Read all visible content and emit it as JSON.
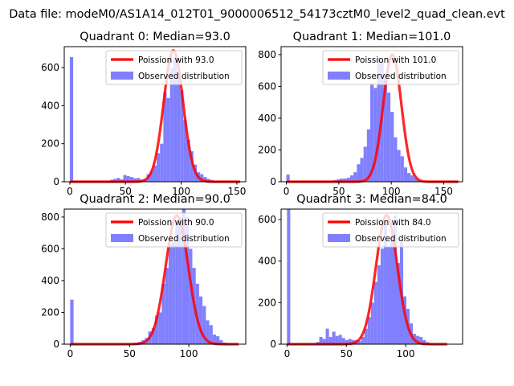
{
  "figure": {
    "suptitle": "Data file: modeM0/AS1A14_012T01_9000006512_54173cztM0_level2_quad_clean.evt"
  },
  "colors": {
    "fit": "#ff0000",
    "hist": "#8080ff",
    "axis": "#000000"
  },
  "chart_data": [
    {
      "type": "bar",
      "title": "Quadrant 0: Median=93.0",
      "median": 93.0,
      "xlim": [
        -5,
        158
      ],
      "ylim": [
        0,
        710
      ],
      "xticks": [
        0,
        50,
        100,
        150
      ],
      "yticks": [
        0,
        200,
        400,
        600
      ],
      "legend": [
        "Poission with 93.0",
        "Observed distribution"
      ],
      "legend_position": "top-right",
      "hist": {
        "bin_start": 0,
        "bin_width": 3,
        "values": [
          655,
          0,
          0,
          0,
          0,
          0,
          0,
          0,
          0,
          0,
          0,
          0,
          10,
          15,
          20,
          12,
          35,
          30,
          25,
          18,
          20,
          12,
          15,
          40,
          55,
          85,
          150,
          200,
          470,
          440,
          595,
          655,
          570,
          480,
          325,
          220,
          160,
          90,
          50,
          40,
          25,
          15,
          10,
          5,
          5,
          5,
          3,
          2,
          0,
          0
        ]
      },
      "fit": {
        "mean": 93.0,
        "peak": 690,
        "sigma": 8.7,
        "x_range": [
          0,
          153
        ]
      }
    },
    {
      "type": "bar",
      "title": "Quadrant 1: Median=101.0",
      "median": 101.0,
      "xlim": [
        -5,
        168
      ],
      "ylim": [
        0,
        850
      ],
      "xticks": [
        0,
        50,
        100,
        150
      ],
      "yticks": [
        0,
        200,
        400,
        600,
        800
      ],
      "legend": [
        "Poission with 101.0",
        "Observed distribution"
      ],
      "legend_position": "top-right",
      "hist": {
        "bin_start": 0,
        "bin_width": 3.2,
        "values": [
          45,
          0,
          0,
          0,
          0,
          0,
          0,
          0,
          0,
          0,
          0,
          0,
          0,
          0,
          10,
          15,
          20,
          20,
          25,
          40,
          60,
          110,
          150,
          220,
          330,
          620,
          590,
          780,
          760,
          680,
          560,
          440,
          280,
          200,
          160,
          90,
          55,
          40,
          25,
          10,
          5,
          3,
          2,
          2,
          0,
          0,
          0,
          0,
          0,
          0
        ]
      },
      "fit": {
        "mean": 101.0,
        "peak": 800,
        "sigma": 8.7,
        "x_range": [
          0,
          164
        ]
      }
    },
    {
      "type": "bar",
      "title": "Quadrant 2: Median=90.0",
      "median": 90.0,
      "xlim": [
        -5,
        148
      ],
      "ylim": [
        0,
        850
      ],
      "xticks": [
        0,
        50,
        100
      ],
      "yticks": [
        0,
        200,
        400,
        600,
        800
      ],
      "legend": [
        "Poission with 90.0",
        "Observed distribution"
      ],
      "legend_position": "top-right",
      "hist": {
        "bin_start": 0,
        "bin_width": 2.86,
        "values": [
          280,
          0,
          0,
          0,
          0,
          0,
          0,
          0,
          0,
          0,
          0,
          0,
          0,
          0,
          0,
          0,
          0,
          0,
          5,
          10,
          15,
          25,
          40,
          80,
          100,
          180,
          200,
          380,
          480,
          630,
          640,
          760,
          790,
          850,
          800,
          600,
          480,
          380,
          300,
          240,
          150,
          120,
          60,
          50,
          25,
          10,
          5,
          2,
          0,
          0
        ]
      },
      "fit": {
        "mean": 90.0,
        "peak": 810,
        "sigma": 9.5,
        "x_range": [
          0,
          142
        ]
      }
    },
    {
      "type": "bar",
      "title": "Quadrant 3: Median=84.0",
      "median": 84.0,
      "xlim": [
        -5,
        148
      ],
      "ylim": [
        0,
        650
      ],
      "xticks": [
        0,
        50,
        100
      ],
      "yticks": [
        0,
        200,
        400,
        600
      ],
      "legend": [
        "Poission with 84.0",
        "Observed distribution"
      ],
      "legend_position": "top-right",
      "hist": {
        "bin_start": 0,
        "bin_width": 2.72,
        "values": [
          650,
          0,
          0,
          0,
          0,
          0,
          0,
          0,
          0,
          10,
          35,
          25,
          75,
          35,
          60,
          40,
          45,
          30,
          20,
          25,
          20,
          20,
          15,
          35,
          75,
          130,
          200,
          300,
          380,
          460,
          580,
          470,
          520,
          620,
          390,
          490,
          230,
          170,
          100,
          50,
          40,
          35,
          20,
          10,
          5,
          2,
          0,
          0,
          0,
          0
        ]
      },
      "fit": {
        "mean": 84.0,
        "peak": 620,
        "sigma": 9.0,
        "x_range": [
          0,
          135
        ]
      }
    }
  ]
}
